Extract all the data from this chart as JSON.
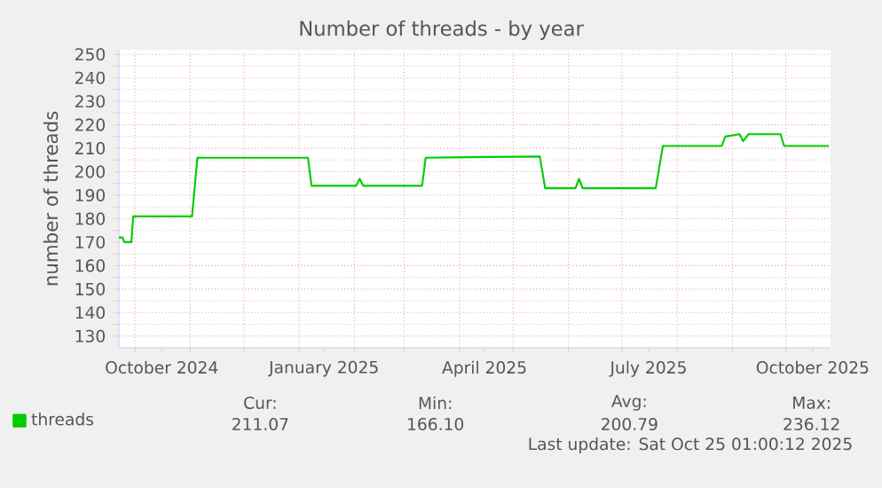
{
  "chart_data": {
    "type": "line",
    "title": "Number of threads - by year",
    "ylabel": "number of threads",
    "x": [
      "2024-09-22",
      "2024-09-24",
      "2024-09-25",
      "2024-09-29",
      "2024-09-30",
      "2024-11-02",
      "2024-11-05",
      "2025-01-06",
      "2025-01-08",
      "2025-02-02",
      "2025-02-04",
      "2025-02-06",
      "2025-03-11",
      "2025-03-13",
      "2025-05-16",
      "2025-05-19",
      "2025-06-05",
      "2025-06-07",
      "2025-06-09",
      "2025-07-20",
      "2025-07-24",
      "2025-08-26",
      "2025-08-28",
      "2025-09-05",
      "2025-09-07",
      "2025-09-10",
      "2025-09-28",
      "2025-09-30",
      "2025-10-25"
    ],
    "series": [
      {
        "name": "threads",
        "color": "#00cc00",
        "values": [
          172,
          172,
          170,
          170,
          181,
          181,
          206,
          206,
          194,
          194,
          197,
          194,
          194,
          206,
          206.5,
          193,
          193,
          197,
          193,
          193,
          211,
          211,
          215,
          216,
          213,
          216,
          216,
          211,
          211
        ]
      }
    ],
    "xlim": [
      "2024-09-22",
      "2025-10-26"
    ],
    "xticks": [
      {
        "value": "2024-10-16",
        "label": "October 2024"
      },
      {
        "value": "2025-01-15",
        "label": "January 2025"
      },
      {
        "value": "2025-04-15",
        "label": "April 2025"
      },
      {
        "value": "2025-07-16",
        "label": "July 2025"
      },
      {
        "value": "2025-10-16",
        "label": "October 2025"
      },
      {
        "value": "2024-10-01",
        "label": null
      },
      {
        "value": "2024-11-01",
        "label": null
      },
      {
        "value": "2024-12-01",
        "label": null
      },
      {
        "value": "2025-01-01",
        "label": null
      },
      {
        "value": "2025-02-01",
        "label": null
      },
      {
        "value": "2025-03-01",
        "label": null
      },
      {
        "value": "2025-04-01",
        "label": null
      },
      {
        "value": "2025-05-01",
        "label": null
      },
      {
        "value": "2025-06-01",
        "label": null
      },
      {
        "value": "2025-07-01",
        "label": null
      },
      {
        "value": "2025-08-01",
        "label": null
      },
      {
        "value": "2025-09-01",
        "label": null
      },
      {
        "value": "2025-10-01",
        "label": null
      }
    ],
    "ylim": [
      125,
      252
    ],
    "yticks": [
      130,
      140,
      150,
      160,
      170,
      180,
      190,
      200,
      210,
      220,
      230,
      240,
      250
    ],
    "grid": true,
    "legend": "bottom left",
    "marker": "none",
    "line_style": "solid",
    "annotations": [
      "Cur:",
      "Min:",
      "Avg:",
      "Max:",
      "211.07",
      "166.10",
      "200.79",
      "236.12",
      "Last update: Sat Oct 25 01:00:12 2025"
    ]
  }
}
